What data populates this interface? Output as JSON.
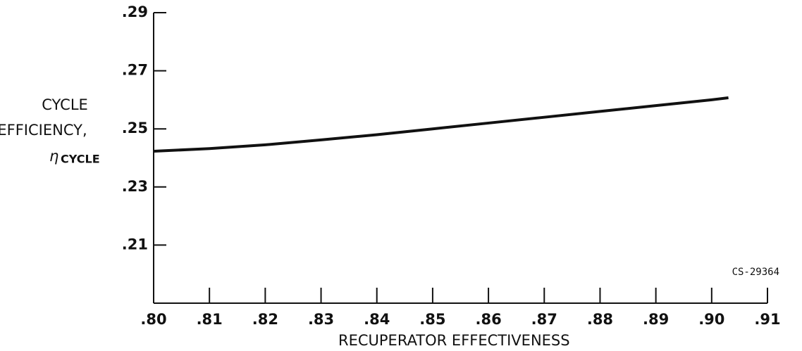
{
  "chart_data": {
    "type": "line",
    "xlabel": "RECUPERATOR EFFECTIVENESS",
    "ylabel": {
      "lines": [
        "CYCLE",
        "EFFICIENCY,"
      ],
      "symbol": "η",
      "subscript": "CYCLE"
    },
    "annotation": "CS-29364",
    "x": [
      0.8,
      0.81,
      0.82,
      0.83,
      0.84,
      0.85,
      0.86,
      0.87,
      0.88,
      0.89,
      0.9,
      0.903
    ],
    "series": [
      {
        "name": "cycle efficiency",
        "color": "#111111",
        "values": [
          0.2423,
          0.2432,
          0.2445,
          0.2462,
          0.248,
          0.25,
          0.252,
          0.254,
          0.256,
          0.258,
          0.26,
          0.2607
        ]
      }
    ],
    "xlim": [
      0.8,
      0.91
    ],
    "xticks": [
      {
        "value": 0.8,
        "label": ".80"
      },
      {
        "value": 0.81,
        "label": ".81"
      },
      {
        "value": 0.82,
        "label": ".82"
      },
      {
        "value": 0.83,
        "label": ".83"
      },
      {
        "value": 0.84,
        "label": ".84"
      },
      {
        "value": 0.85,
        "label": ".85"
      },
      {
        "value": 0.86,
        "label": ".86"
      },
      {
        "value": 0.87,
        "label": ".87"
      },
      {
        "value": 0.88,
        "label": ".88"
      },
      {
        "value": 0.89,
        "label": ".89"
      },
      {
        "value": 0.9,
        "label": ".90"
      },
      {
        "value": 0.91,
        "label": ".91"
      }
    ],
    "ylim": [
      0.19,
      0.29
    ],
    "yticks": [
      {
        "value": 0.21,
        "label": ".21"
      },
      {
        "value": 0.23,
        "label": ".23"
      },
      {
        "value": 0.25,
        "label": ".25"
      },
      {
        "value": 0.27,
        "label": ".27"
      },
      {
        "value": 0.29,
        "label": ".29"
      }
    ],
    "grid": false
  }
}
